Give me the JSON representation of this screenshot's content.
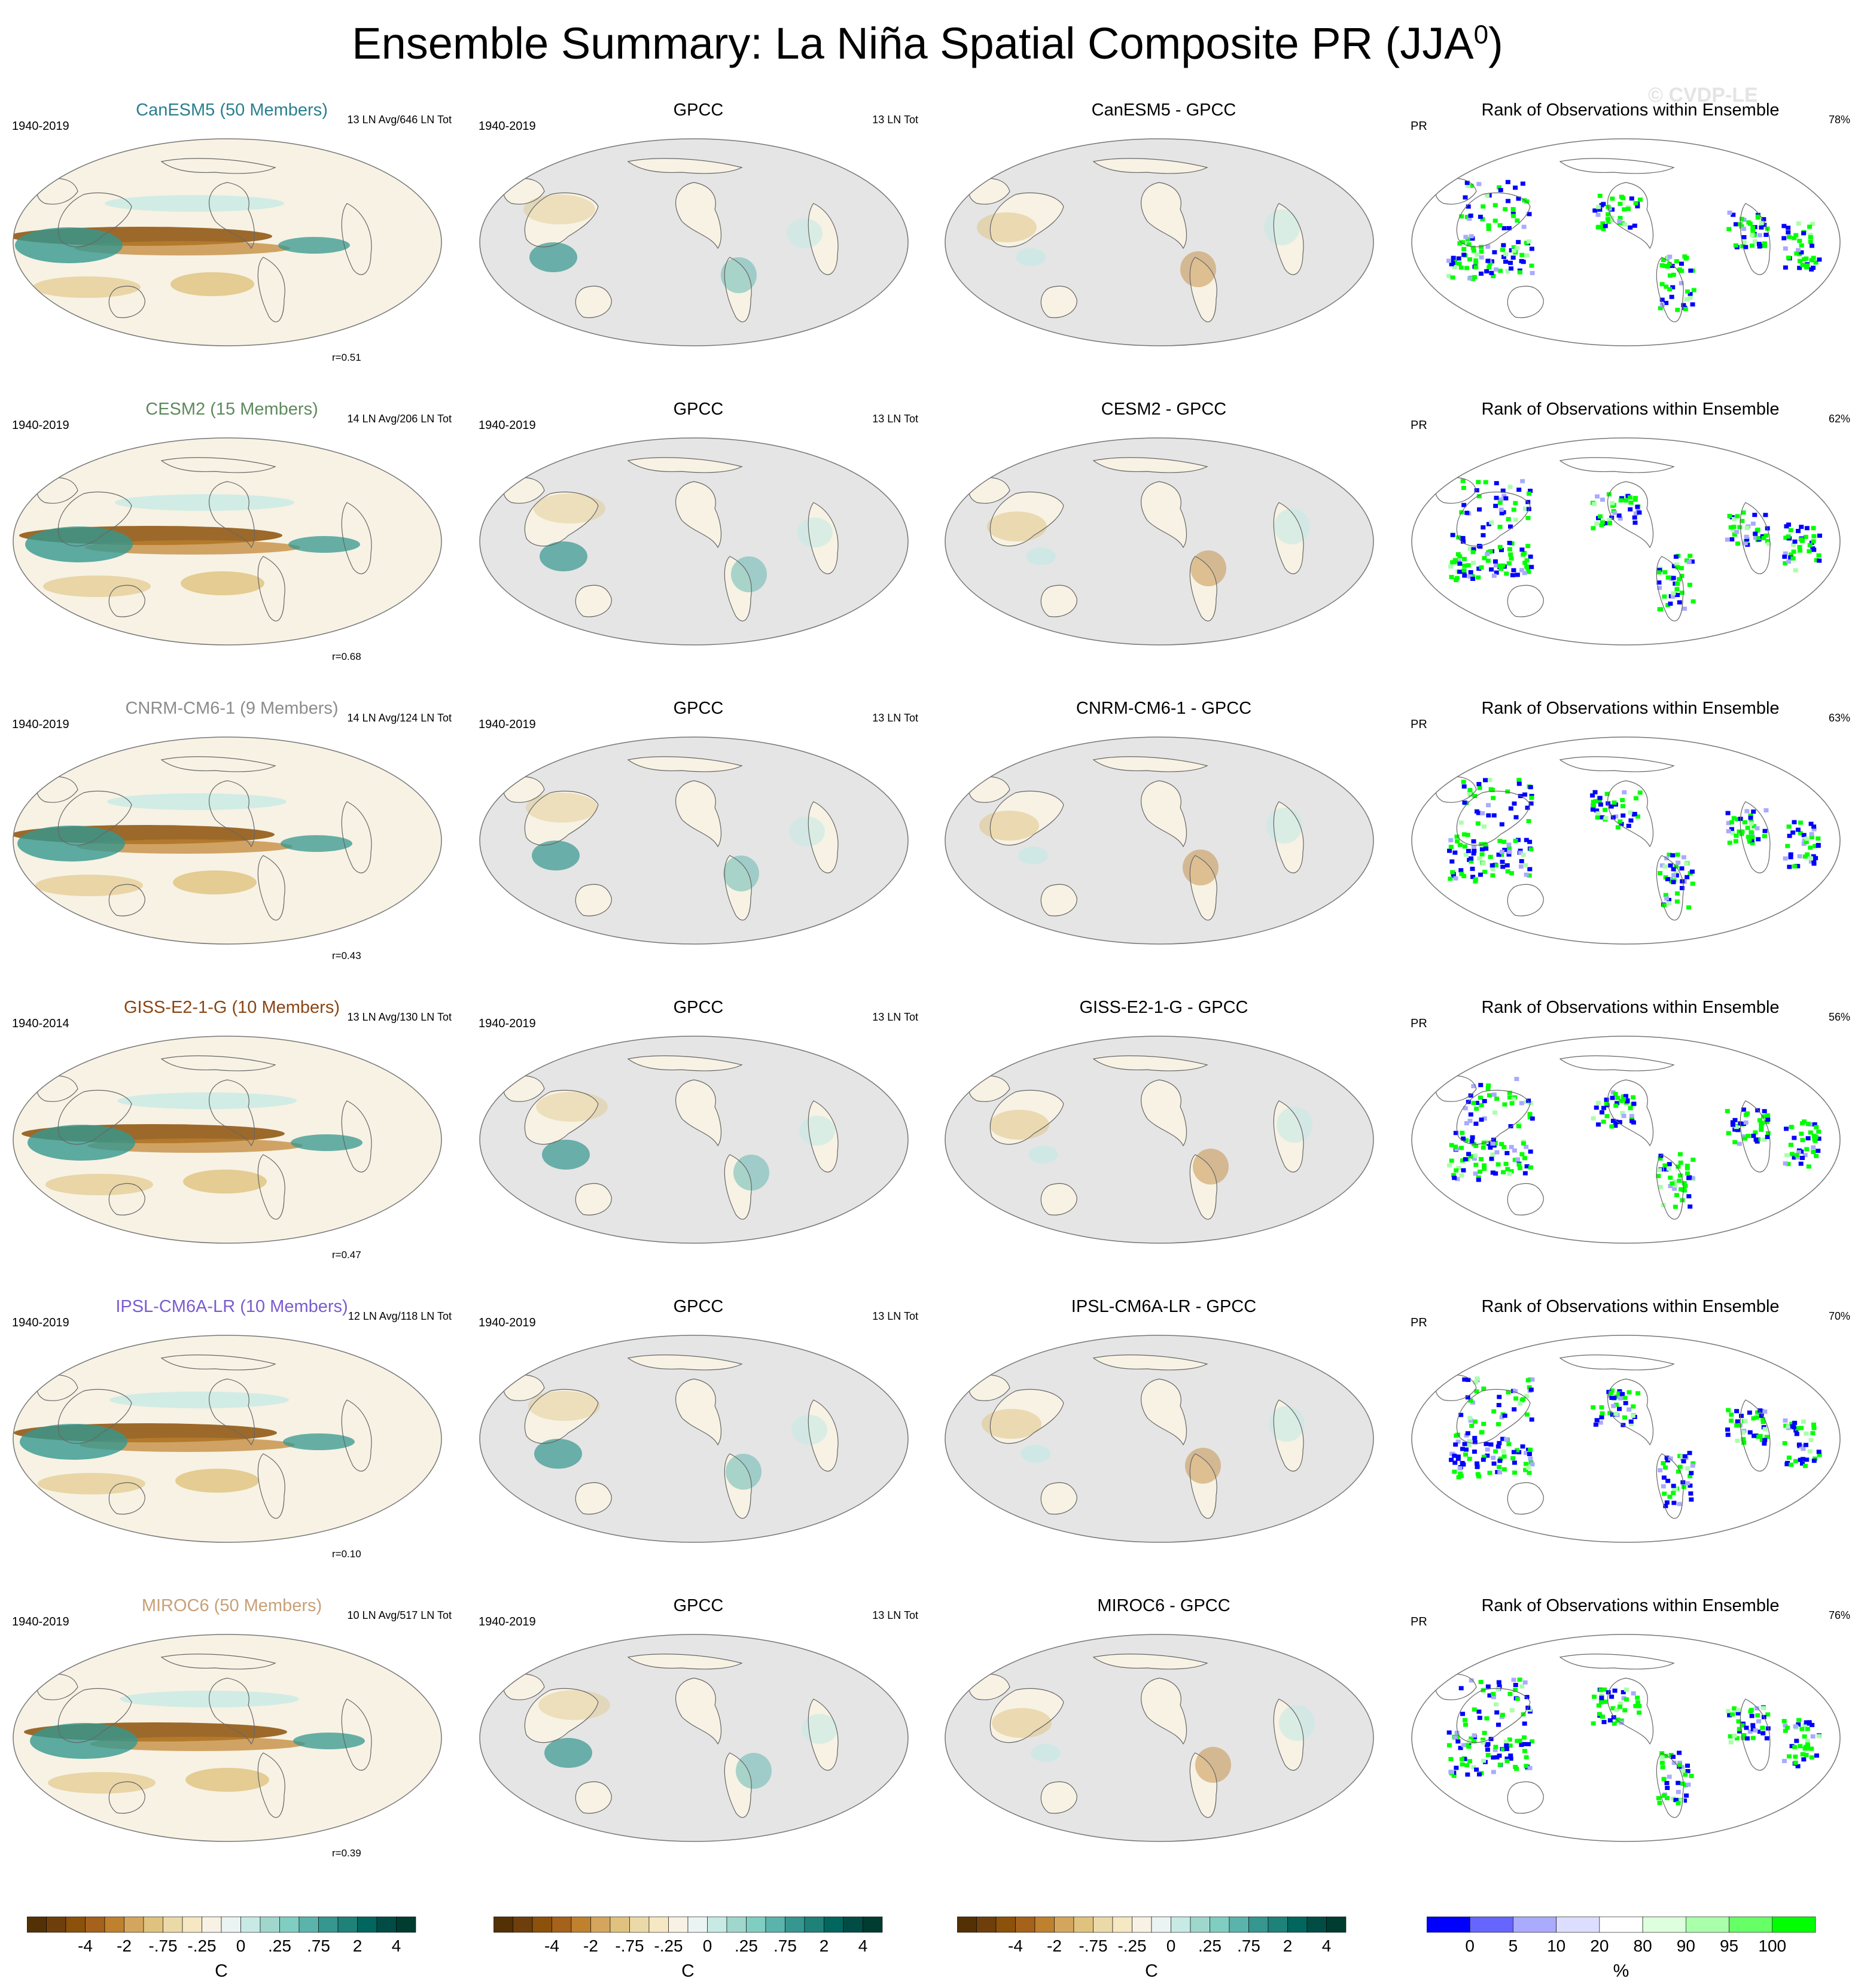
{
  "title_main": "Ensemble Summary: La Niña Spatial Composite PR (JJA",
  "title_sup": "0",
  "title_end": ")",
  "watermark": "© CVDP-LE",
  "colors": {
    "brown_dark": "#543005",
    "brown": "#a6611a",
    "tan": "#dfc27d",
    "cream": "#f7f2e4",
    "teal_light": "#c7eae5",
    "teal": "#35978f",
    "teal_dark": "#01665e",
    "ocean": "#e5e5e5",
    "green": "#00ff00",
    "blue": "#0000ff",
    "model_colors": [
      "#2a7f8f",
      "#5e8a5e",
      "#8c8c8c",
      "#8b4513",
      "#7b5ccf",
      "#c8a078"
    ]
  },
  "rows": [
    {
      "model": {
        "title": "CanESM5 (50 Members)",
        "period": "1940-2019",
        "count": "13 LN Avg/646 LN Tot",
        "r": "r=0.51"
      },
      "obs": {
        "title": "GPCC",
        "period": "1940-2019",
        "count": "13 LN Tot"
      },
      "diff": {
        "title": "CanESM5 - GPCC"
      },
      "rank": {
        "title": "Rank of Observations within Ensemble",
        "var": "PR",
        "pct": "78%"
      }
    },
    {
      "model": {
        "title": "CESM2 (15 Members)",
        "period": "1940-2019",
        "count": "14 LN Avg/206 LN Tot",
        "r": "r=0.68"
      },
      "obs": {
        "title": "GPCC",
        "period": "1940-2019",
        "count": "13 LN Tot"
      },
      "diff": {
        "title": "CESM2 - GPCC"
      },
      "rank": {
        "title": "Rank of Observations within Ensemble",
        "var": "PR",
        "pct": "62%"
      }
    },
    {
      "model": {
        "title": "CNRM-CM6-1 (9 Members)",
        "period": "1940-2019",
        "count": "14 LN Avg/124 LN Tot",
        "r": "r=0.43"
      },
      "obs": {
        "title": "GPCC",
        "period": "1940-2019",
        "count": "13 LN Tot"
      },
      "diff": {
        "title": "CNRM-CM6-1 - GPCC"
      },
      "rank": {
        "title": "Rank of Observations within Ensemble",
        "var": "PR",
        "pct": "63%"
      }
    },
    {
      "model": {
        "title": "GISS-E2-1-G (10 Members)",
        "period": "1940-2014",
        "count": "13 LN Avg/130 LN Tot",
        "r": "r=0.47"
      },
      "obs": {
        "title": "GPCC",
        "period": "1940-2019",
        "count": "13 LN Tot"
      },
      "diff": {
        "title": "GISS-E2-1-G - GPCC"
      },
      "rank": {
        "title": "Rank of Observations within Ensemble",
        "var": "PR",
        "pct": "56%"
      }
    },
    {
      "model": {
        "title": "IPSL-CM6A-LR (10 Members)",
        "period": "1940-2019",
        "count": "12 LN Avg/118 LN Tot",
        "r": "r=0.10"
      },
      "obs": {
        "title": "GPCC",
        "period": "1940-2019",
        "count": "13 LN Tot"
      },
      "diff": {
        "title": "IPSL-CM6A-LR - GPCC"
      },
      "rank": {
        "title": "Rank of Observations within Ensemble",
        "var": "PR",
        "pct": "70%"
      }
    },
    {
      "model": {
        "title": "MIROC6 (50 Members)",
        "period": "1940-2019",
        "count": "10 LN Avg/517 LN Tot",
        "r": "r=0.39"
      },
      "obs": {
        "title": "GPCC",
        "period": "1940-2019",
        "count": "13 LN Tot"
      },
      "diff": {
        "title": "MIROC6 - GPCC"
      },
      "rank": {
        "title": "Rank of Observations within Ensemble",
        "var": "PR",
        "pct": "76%"
      }
    }
  ],
  "chart_data": {
    "type": "heatmap",
    "colorbar_diverging": {
      "labels": [
        "-4",
        "-2",
        "-.75",
        "-.25",
        "0",
        ".25",
        ".75",
        "2",
        "4"
      ],
      "unit": "C",
      "colors": [
        "#543005",
        "#6e3f0b",
        "#8c510a",
        "#a6611a",
        "#bf812d",
        "#d4a55c",
        "#dfc27d",
        "#ecd9a8",
        "#f6e8c3",
        "#f7f2e4",
        "#eaf5f3",
        "#c7eae5",
        "#9fd7cd",
        "#80cdc1",
        "#5ab4ac",
        "#35978f",
        "#1f8278",
        "#01665e",
        "#014d45",
        "#003c30"
      ]
    },
    "colorbar_rank": {
      "labels": [
        "0",
        "5",
        "10",
        "20",
        "80",
        "90",
        "95",
        "100"
      ],
      "unit": "%",
      "colors": [
        "#0000ff",
        "#6666ff",
        "#aaaaff",
        "#ddddff",
        "#ffffff",
        "#ddffdd",
        "#aaffaa",
        "#66ff66",
        "#00ff00"
      ]
    }
  }
}
